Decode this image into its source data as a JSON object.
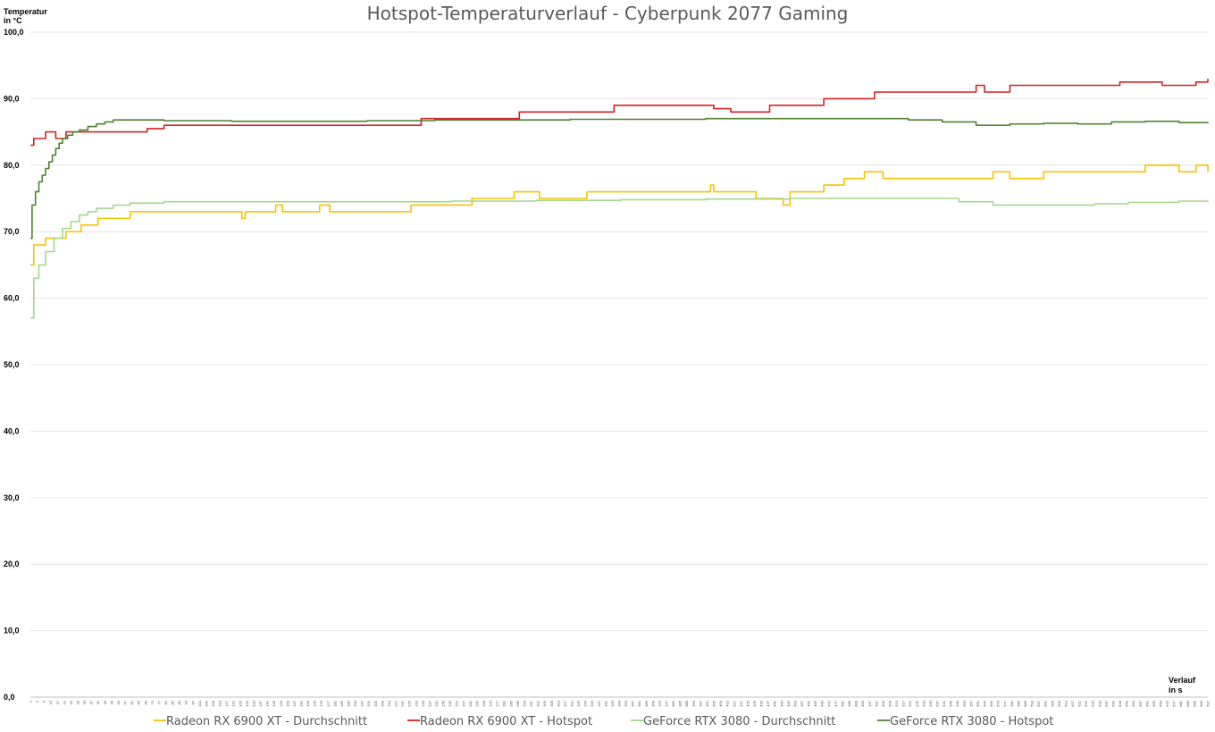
{
  "chart_data": {
    "type": "line",
    "title": "Hotspot-Temperaturverlauf - Cyberpunk 2077 Gaming",
    "ylabel": [
      "Temperatur",
      "in °C"
    ],
    "xlabel": [
      "Verlauf",
      "in s"
    ],
    "ylim": [
      0,
      100
    ],
    "xlim": [
      1,
      697
    ],
    "x_tick_step": 4,
    "yticks": [
      "0,0",
      "10,0",
      "20,0",
      "30,0",
      "40,0",
      "50,0",
      "60,0",
      "70,0",
      "80,0",
      "90,0",
      "100,0"
    ],
    "grid": true,
    "legend_position": "bottom",
    "series": [
      {
        "name": "Radeon RX 6900 XT - Durchschnitt",
        "color": "#f5c400",
        "points": [
          [
            1,
            65
          ],
          [
            3,
            68
          ],
          [
            8,
            68
          ],
          [
            10,
            69
          ],
          [
            20,
            69
          ],
          [
            22,
            70
          ],
          [
            30,
            70
          ],
          [
            31,
            71
          ],
          [
            40,
            71
          ],
          [
            41,
            72
          ],
          [
            50,
            72
          ],
          [
            52,
            72
          ],
          [
            58,
            72
          ],
          [
            60,
            73
          ],
          [
            120,
            73
          ],
          [
            124,
            73
          ],
          [
            126,
            72
          ],
          [
            128,
            73
          ],
          [
            140,
            73
          ],
          [
            146,
            74
          ],
          [
            150,
            73
          ],
          [
            170,
            73
          ],
          [
            172,
            74
          ],
          [
            178,
            73
          ],
          [
            220,
            73
          ],
          [
            224,
            73
          ],
          [
            226,
            74
          ],
          [
            260,
            74
          ],
          [
            262,
            75
          ],
          [
            285,
            75
          ],
          [
            287,
            76
          ],
          [
            300,
            76
          ],
          [
            302,
            75
          ],
          [
            330,
            76
          ],
          [
            400,
            76
          ],
          [
            403,
            77
          ],
          [
            405,
            76
          ],
          [
            420,
            76
          ],
          [
            430,
            75
          ],
          [
            445,
            75
          ],
          [
            446,
            74
          ],
          [
            450,
            76
          ],
          [
            456,
            76
          ],
          [
            460,
            76
          ],
          [
            470,
            77
          ],
          [
            475,
            77
          ],
          [
            478,
            77
          ],
          [
            482,
            78
          ],
          [
            490,
            78
          ],
          [
            494,
            79
          ],
          [
            500,
            79
          ],
          [
            505,
            78
          ],
          [
            540,
            78
          ],
          [
            550,
            78
          ],
          [
            560,
            78
          ],
          [
            570,
            79
          ],
          [
            580,
            78
          ],
          [
            600,
            79
          ],
          [
            640,
            79
          ],
          [
            650,
            79
          ],
          [
            660,
            80
          ],
          [
            680,
            79
          ],
          [
            690,
            80
          ],
          [
            697,
            79
          ]
        ]
      },
      {
        "name": "Radeon RX 6900 XT - Hotspot",
        "color": "#d62222",
        "points": [
          [
            1,
            83
          ],
          [
            3,
            84
          ],
          [
            8,
            84
          ],
          [
            10,
            85
          ],
          [
            16,
            84
          ],
          [
            22,
            85
          ],
          [
            60,
            85
          ],
          [
            70,
            85.5
          ],
          [
            80,
            86
          ],
          [
            228,
            86
          ],
          [
            232,
            87
          ],
          [
            280,
            87
          ],
          [
            290,
            88
          ],
          [
            340,
            88
          ],
          [
            346,
            89
          ],
          [
            350,
            89
          ],
          [
            395,
            89
          ],
          [
            405,
            88.5
          ],
          [
            415,
            88
          ],
          [
            430,
            88
          ],
          [
            438,
            89
          ],
          [
            460,
            89
          ],
          [
            470,
            90
          ],
          [
            490,
            90
          ],
          [
            500,
            91
          ],
          [
            550,
            91
          ],
          [
            560,
            92
          ],
          [
            565,
            91
          ],
          [
            570,
            91
          ],
          [
            580,
            92
          ],
          [
            640,
            92
          ],
          [
            645,
            92.5
          ],
          [
            660,
            92.5
          ],
          [
            670,
            92
          ],
          [
            690,
            92.5
          ],
          [
            697,
            93
          ]
        ]
      },
      {
        "name": "GeForce RTX 3080 - Durchschnitt",
        "color": "#a6d68a",
        "points": [
          [
            1,
            57
          ],
          [
            3,
            63
          ],
          [
            6,
            65
          ],
          [
            10,
            67
          ],
          [
            15,
            69
          ],
          [
            20,
            70.5
          ],
          [
            25,
            71.5
          ],
          [
            30,
            72.5
          ],
          [
            35,
            73
          ],
          [
            40,
            73.5
          ],
          [
            50,
            74
          ],
          [
            60,
            74.3
          ],
          [
            80,
            74.5
          ],
          [
            100,
            74.5
          ],
          [
            150,
            74.5
          ],
          [
            200,
            74.5
          ],
          [
            250,
            74.6
          ],
          [
            300,
            74.7
          ],
          [
            350,
            74.8
          ],
          [
            400,
            74.9
          ],
          [
            450,
            75
          ],
          [
            480,
            75
          ],
          [
            520,
            75
          ],
          [
            550,
            74.5
          ],
          [
            570,
            74
          ],
          [
            600,
            74
          ],
          [
            630,
            74.2
          ],
          [
            650,
            74.4
          ],
          [
            680,
            74.6
          ],
          [
            697,
            74.5
          ]
        ]
      },
      {
        "name": "GeForce RTX 3080 - Hotspot",
        "color": "#4f8232",
        "points": [
          [
            1,
            69
          ],
          [
            2,
            74
          ],
          [
            4,
            76
          ],
          [
            6,
            77.5
          ],
          [
            8,
            78.5
          ],
          [
            10,
            79.5
          ],
          [
            12,
            80.5
          ],
          [
            14,
            81.5
          ],
          [
            16,
            82.5
          ],
          [
            18,
            83.3
          ],
          [
            20,
            84
          ],
          [
            23,
            84.5
          ],
          [
            26,
            85
          ],
          [
            30,
            85.3
          ],
          [
            35,
            85.8
          ],
          [
            40,
            86.2
          ],
          [
            45,
            86.5
          ],
          [
            50,
            86.8
          ],
          [
            60,
            86.8
          ],
          [
            80,
            86.7
          ],
          [
            120,
            86.6
          ],
          [
            160,
            86.6
          ],
          [
            200,
            86.7
          ],
          [
            240,
            86.8
          ],
          [
            280,
            86.8
          ],
          [
            320,
            86.9
          ],
          [
            360,
            86.9
          ],
          [
            400,
            87
          ],
          [
            440,
            87
          ],
          [
            480,
            87
          ],
          [
            520,
            86.8
          ],
          [
            540,
            86.5
          ],
          [
            560,
            86
          ],
          [
            580,
            86.2
          ],
          [
            600,
            86.3
          ],
          [
            620,
            86.2
          ],
          [
            640,
            86.5
          ],
          [
            660,
            86.6
          ],
          [
            680,
            86.4
          ],
          [
            697,
            86.5
          ]
        ]
      }
    ]
  }
}
